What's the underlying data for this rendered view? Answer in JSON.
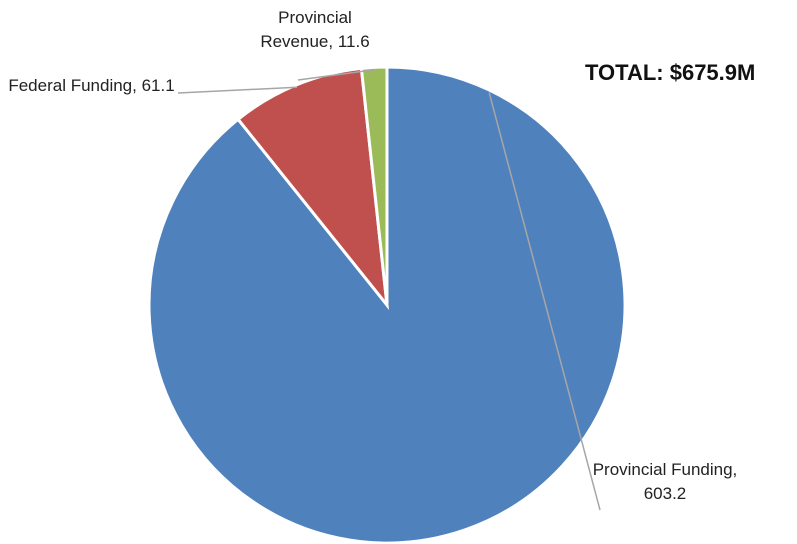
{
  "chart_data": {
    "type": "pie",
    "annotation": "TOTAL: $675.9M",
    "categories": [
      "Provincial Funding",
      "Federal Funding",
      "Provincial Revenue"
    ],
    "values": [
      603.2,
      61.1,
      11.6
    ],
    "value_labels": [
      "Provincial Funding, 603.2",
      "Federal Funding, 61.1",
      "Provincial Revenue, 11.6"
    ],
    "colors": [
      "#4f81bd",
      "#c0504d",
      "#9bbb59"
    ]
  }
}
